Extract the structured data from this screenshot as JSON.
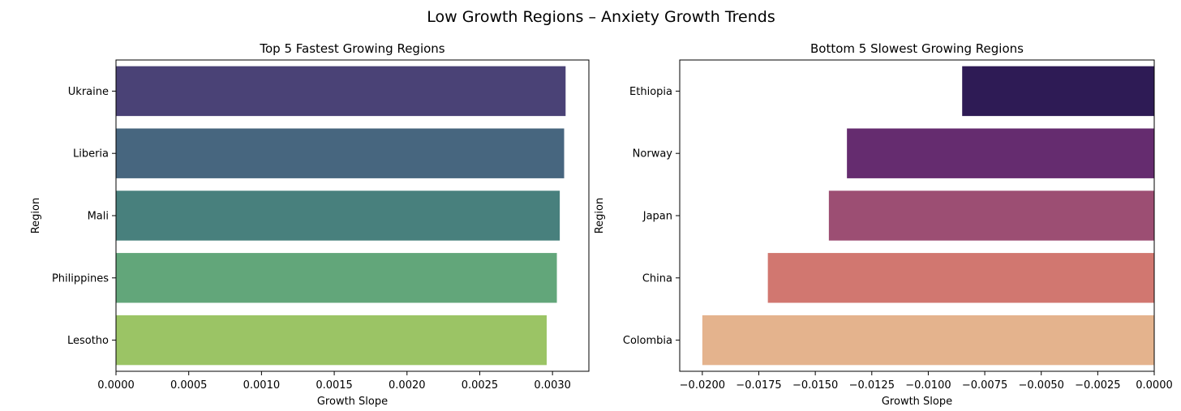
{
  "suptitle": "Low Growth Regions – Anxiety Growth Trends",
  "chart_data": [
    {
      "type": "bar",
      "orientation": "horizontal",
      "title": "Top 5 Fastest Growing Regions",
      "xlabel": "Growth Slope",
      "ylabel": "Region",
      "categories": [
        "Ukraine",
        "Liberia",
        "Mali",
        "Philippines",
        "Lesotho"
      ],
      "values": [
        0.00309,
        0.00308,
        0.00305,
        0.00303,
        0.00296
      ],
      "colors": [
        "#4a4276",
        "#47667f",
        "#48807d",
        "#62a67a",
        "#9bc465"
      ],
      "xlim": [
        0,
        0.00325
      ],
      "xticks": [
        0.0,
        0.0005,
        0.001,
        0.0015,
        0.002,
        0.0025,
        0.003
      ],
      "xtick_labels": [
        "0.0000",
        "0.0005",
        "0.0010",
        "0.0015",
        "0.0020",
        "0.0025",
        "0.0030"
      ],
      "grid": false
    },
    {
      "type": "bar",
      "orientation": "horizontal",
      "title": "Bottom 5 Slowest Growing Regions",
      "xlabel": "Growth Slope",
      "ylabel": "Region",
      "categories": [
        "Ethiopia",
        "Norway",
        "Japan",
        "China",
        "Colombia"
      ],
      "values": [
        -0.0085,
        -0.0136,
        -0.0144,
        -0.0171,
        -0.02
      ],
      "colors": [
        "#2e1b55",
        "#652c6f",
        "#9c4e73",
        "#d17770",
        "#e4b38d"
      ],
      "xlim": [
        -0.021,
        0.0
      ],
      "xticks": [
        -0.02,
        -0.0175,
        -0.015,
        -0.0125,
        -0.01,
        -0.0075,
        -0.005,
        -0.0025,
        0.0
      ],
      "xtick_labels": [
        "−0.0200",
        "−0.0175",
        "−0.0150",
        "−0.0125",
        "−0.0100",
        "−0.0075",
        "−0.0050",
        "−0.0025",
        "0.0000"
      ],
      "grid": false
    }
  ]
}
